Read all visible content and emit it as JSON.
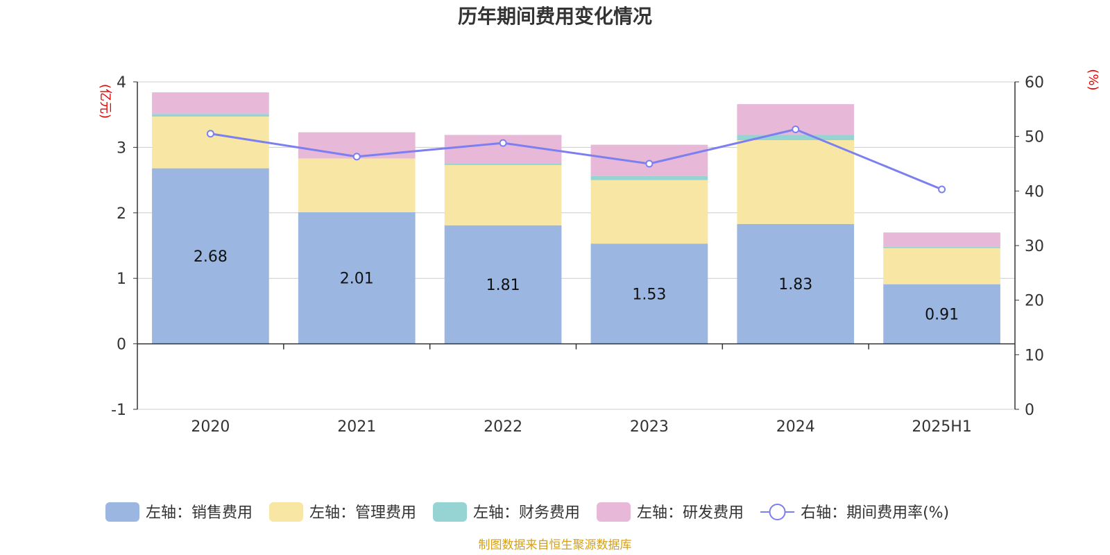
{
  "chart_data": {
    "type": "bar",
    "title": "历年期间费用变化情况",
    "categories": [
      "2020",
      "2021",
      "2022",
      "2023",
      "2024",
      "2025H1"
    ],
    "left_axis": {
      "unit": "(亿元)",
      "ylim": [
        -1,
        4
      ],
      "ticks": [
        "-1",
        "0",
        "1",
        "2",
        "3",
        "4"
      ]
    },
    "right_axis": {
      "unit": "(%)",
      "ylim": [
        0,
        60
      ],
      "ticks": [
        "0",
        "10",
        "20",
        "30",
        "40",
        "50",
        "60"
      ]
    },
    "series": [
      {
        "name": "左轴：销售费用",
        "kind": "bar",
        "color": "#9bb6e0",
        "values": [
          2.68,
          2.01,
          1.81,
          1.53,
          1.83,
          0.91
        ],
        "labels": [
          "2.68",
          "2.01",
          "1.81",
          "1.53",
          "1.83",
          "0.91"
        ]
      },
      {
        "name": "左轴：管理费用",
        "kind": "bar",
        "color": "#f8e6a5",
        "values": [
          0.79,
          0.82,
          0.92,
          0.97,
          1.28,
          0.55
        ]
      },
      {
        "name": "左轴：财务费用",
        "kind": "bar",
        "color": "#96d3d3",
        "values": [
          0.04,
          0.0,
          0.02,
          0.06,
          0.08,
          0.02
        ]
      },
      {
        "name": "左轴：研发费用",
        "kind": "bar",
        "color": "#e7b8d8",
        "values": [
          0.33,
          0.4,
          0.44,
          0.48,
          0.47,
          0.22
        ]
      },
      {
        "name": "右轴：期间费用率(%)",
        "kind": "line",
        "axis": "right",
        "color": "#7b7ff0",
        "values": [
          50.5,
          46.3,
          48.8,
          45.0,
          51.3,
          40.3
        ]
      }
    ],
    "grid": true,
    "legend_position": "bottom"
  },
  "source_note": "制图数据来自恒生聚源数据库"
}
